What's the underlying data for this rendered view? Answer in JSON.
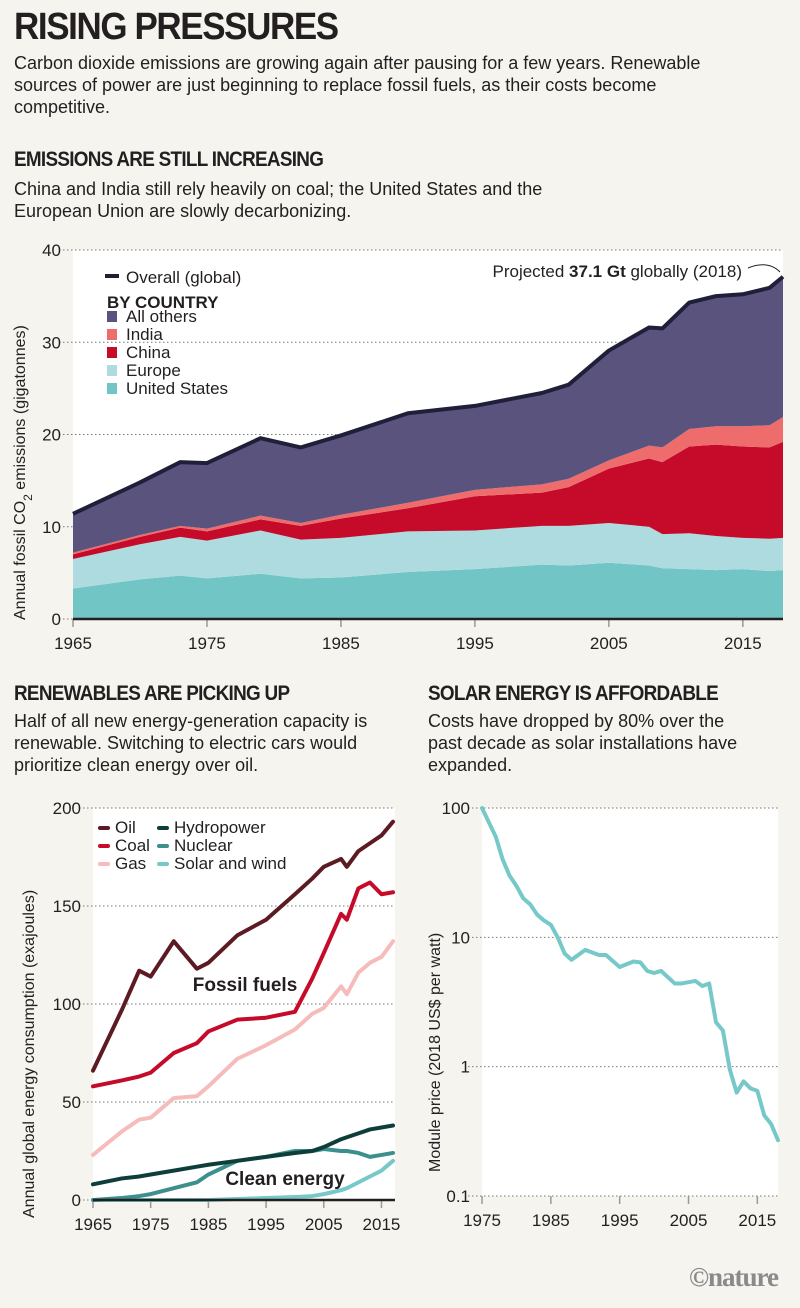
{
  "header": {
    "title": "RISING PRESSURES",
    "subtitle": "Carbon dioxide emissions are growing again after pausing for a few years. Renewable sources of power are just beginning to replace fossil fuels, as their costs become competitive."
  },
  "colors": {
    "background": "#f5f4ee",
    "us": "#72c5c5",
    "europe": "#aedbe0",
    "china": "#c50b29",
    "india": "#ee6c6c",
    "others": "#5a537e",
    "overall": "#1f1f3a",
    "oil": "#5c1a22",
    "coal": "#c50b29",
    "gas": "#f6bcbc",
    "hydro": "#0e3e3a",
    "nuclear": "#3c8f8c",
    "solar": "#76c9c8"
  },
  "chart_data": [
    {
      "type": "area",
      "stacked": true,
      "heading": "EMISSIONS ARE STILL INCREASING",
      "description": "China and India still rely heavily on coal; the United States and the European Union are slowly decarbonizing.",
      "ylabel_main": "Annual fossil CO",
      "ylabel_sub": "2",
      "ylabel_end": " emissions (gigatonnes)",
      "xlim": [
        1965,
        2018
      ],
      "ylim": [
        0,
        40
      ],
      "yticks": [
        0,
        10,
        20,
        30,
        40
      ],
      "xticks": [
        1965,
        1975,
        1985,
        1995,
        2005,
        2015
      ],
      "grid": true,
      "legend_placement": "top-left",
      "legend_overall": "Overall (global)",
      "legend_group_title": "BY COUNTRY",
      "annotation": {
        "prefix": "Projected ",
        "bold": "37.1 Gt",
        "suffix": " globally (2018)"
      },
      "x": [
        1965,
        1970,
        1973,
        1975,
        1979,
        1982,
        1985,
        1990,
        1995,
        2000,
        2002,
        2005,
        2008,
        2009,
        2011,
        2013,
        2015,
        2017,
        2018
      ],
      "series": [
        {
          "name": "United States",
          "color": "#72c5c5",
          "values": [
            3.3,
            4.3,
            4.7,
            4.4,
            4.9,
            4.4,
            4.5,
            5.1,
            5.4,
            5.9,
            5.8,
            6.1,
            5.8,
            5.5,
            5.4,
            5.3,
            5.4,
            5.2,
            5.3
          ]
        },
        {
          "name": "Europe",
          "color": "#aedbe0",
          "values": [
            3.2,
            3.8,
            4.2,
            4.1,
            4.7,
            4.2,
            4.3,
            4.4,
            4.2,
            4.2,
            4.3,
            4.3,
            4.2,
            3.7,
            3.9,
            3.7,
            3.4,
            3.5,
            3.5
          ]
        },
        {
          "name": "China",
          "color": "#c50b29",
          "values": [
            0.5,
            0.8,
            1.0,
            1.0,
            1.2,
            1.5,
            2.1,
            2.5,
            3.7,
            3.6,
            4.2,
            5.9,
            7.4,
            7.8,
            9.4,
            9.9,
            9.9,
            9.9,
            10.4
          ]
        },
        {
          "name": "India",
          "color": "#ee6c6c",
          "values": [
            0.2,
            0.2,
            0.2,
            0.3,
            0.4,
            0.3,
            0.4,
            0.6,
            0.7,
            0.9,
            0.9,
            0.9,
            1.4,
            1.6,
            1.9,
            2.0,
            2.2,
            2.4,
            2.7
          ]
        },
        {
          "name": "All others",
          "color": "#5a537e",
          "values": [
            4.2,
            5.7,
            6.9,
            7.1,
            8.4,
            8.2,
            8.6,
            9.7,
            9.1,
            9.9,
            10.2,
            11.9,
            12.8,
            12.9,
            13.7,
            14.1,
            14.3,
            14.9,
            15.2
          ]
        }
      ],
      "overall": [
        11.4,
        14.8,
        17.0,
        16.9,
        19.6,
        18.6,
        19.9,
        22.3,
        23.1,
        24.5,
        25.4,
        29.1,
        31.6,
        31.5,
        34.3,
        35.0,
        35.2,
        35.9,
        37.1
      ]
    },
    {
      "type": "line",
      "heading": "RENEWABLES ARE PICKING UP",
      "description": "Half of all new energy-generation capacity is renewable. Switching to electric cars would prioritize clean energy over oil.",
      "ylabel": "Annual global energy consumption (exajoules)",
      "xlim": [
        1965,
        2017
      ],
      "ylim": [
        0,
        200
      ],
      "yticks": [
        0,
        50,
        100,
        150,
        200
      ],
      "xticks": [
        1965,
        1975,
        1985,
        1995,
        2005,
        2015
      ],
      "grid": true,
      "legend_placement": "top-left",
      "annotations": [
        "Fossil fuels",
        "Clean energy"
      ],
      "x": [
        1965,
        1970,
        1973,
        1975,
        1979,
        1983,
        1985,
        1990,
        1995,
        2000,
        2003,
        2005,
        2008,
        2009,
        2011,
        2013,
        2015,
        2017
      ],
      "series": [
        {
          "name": "Oil",
          "color": "#5c1a22",
          "values": [
            66,
            97,
            117,
            114,
            132,
            118,
            121,
            135,
            143,
            156,
            164,
            170,
            174,
            170,
            178,
            182,
            186,
            193
          ]
        },
        {
          "name": "Coal",
          "color": "#c50b29",
          "values": [
            58,
            61,
            63,
            65,
            75,
            80,
            86,
            92,
            93,
            96,
            113,
            126,
            146,
            143,
            159,
            162,
            156,
            157
          ]
        },
        {
          "name": "Gas",
          "color": "#f6bcbc",
          "values": [
            23,
            35,
            41,
            42,
            52,
            53,
            58,
            72,
            79,
            87,
            95,
            98,
            109,
            105,
            116,
            121,
            124,
            132
          ]
        },
        {
          "name": "Hydropower",
          "color": "#0e3e3a",
          "values": [
            8,
            11,
            12,
            13,
            15,
            17,
            18,
            20,
            22,
            24,
            25,
            27,
            31,
            32,
            34,
            36,
            37,
            38
          ]
        },
        {
          "name": "Nuclear",
          "color": "#3c8f8c",
          "values": [
            0,
            1,
            2,
            3,
            6,
            9,
            13,
            20,
            22,
            25,
            25,
            26,
            25,
            25,
            24,
            22,
            23,
            24
          ]
        },
        {
          "name": "Solar and wind",
          "color": "#76c9c8",
          "values": [
            0,
            0,
            0,
            0,
            0,
            0,
            0,
            0.5,
            1,
            1.5,
            2,
            3,
            5,
            6,
            9,
            12,
            15,
            20
          ]
        }
      ]
    },
    {
      "type": "line",
      "heading": "SOLAR ENERGY IS AFFORDABLE",
      "description": "Costs have dropped by 80% over the past decade as solar installations have expanded.",
      "ylabel": "Module price (2018 US$ per watt)",
      "yscale": "log",
      "xlim": [
        1975,
        2018
      ],
      "ylim": [
        0.1,
        100
      ],
      "yticks": [
        "100",
        "10",
        "1",
        "0.1"
      ],
      "xticks": [
        1975,
        1985,
        1995,
        2005,
        2015
      ],
      "grid": true,
      "x": [
        1975,
        1977,
        1978,
        1979,
        1980,
        1981,
        1982,
        1983,
        1984,
        1985,
        1986,
        1987,
        1988,
        1990,
        1992,
        1993,
        1995,
        1997,
        1998,
        1999,
        2000,
        2001,
        2003,
        2004,
        2006,
        2007,
        2008,
        2009,
        2010,
        2011,
        2012,
        2013,
        2014,
        2015,
        2016,
        2017,
        2018
      ],
      "series": [
        {
          "color": "#76c9c8",
          "values": [
            100,
            60,
            40,
            30,
            25,
            20,
            18,
            15,
            13.5,
            12.5,
            10,
            7.5,
            6.7,
            8.0,
            7.3,
            7.3,
            5.9,
            6.5,
            6.4,
            5.5,
            5.3,
            5.5,
            4.4,
            4.4,
            4.6,
            4.2,
            4.4,
            2.2,
            1.9,
            0.95,
            0.63,
            0.77,
            0.68,
            0.65,
            0.42,
            0.36,
            0.27
          ]
        }
      ]
    }
  ],
  "footer": {
    "logo": "©nature"
  }
}
